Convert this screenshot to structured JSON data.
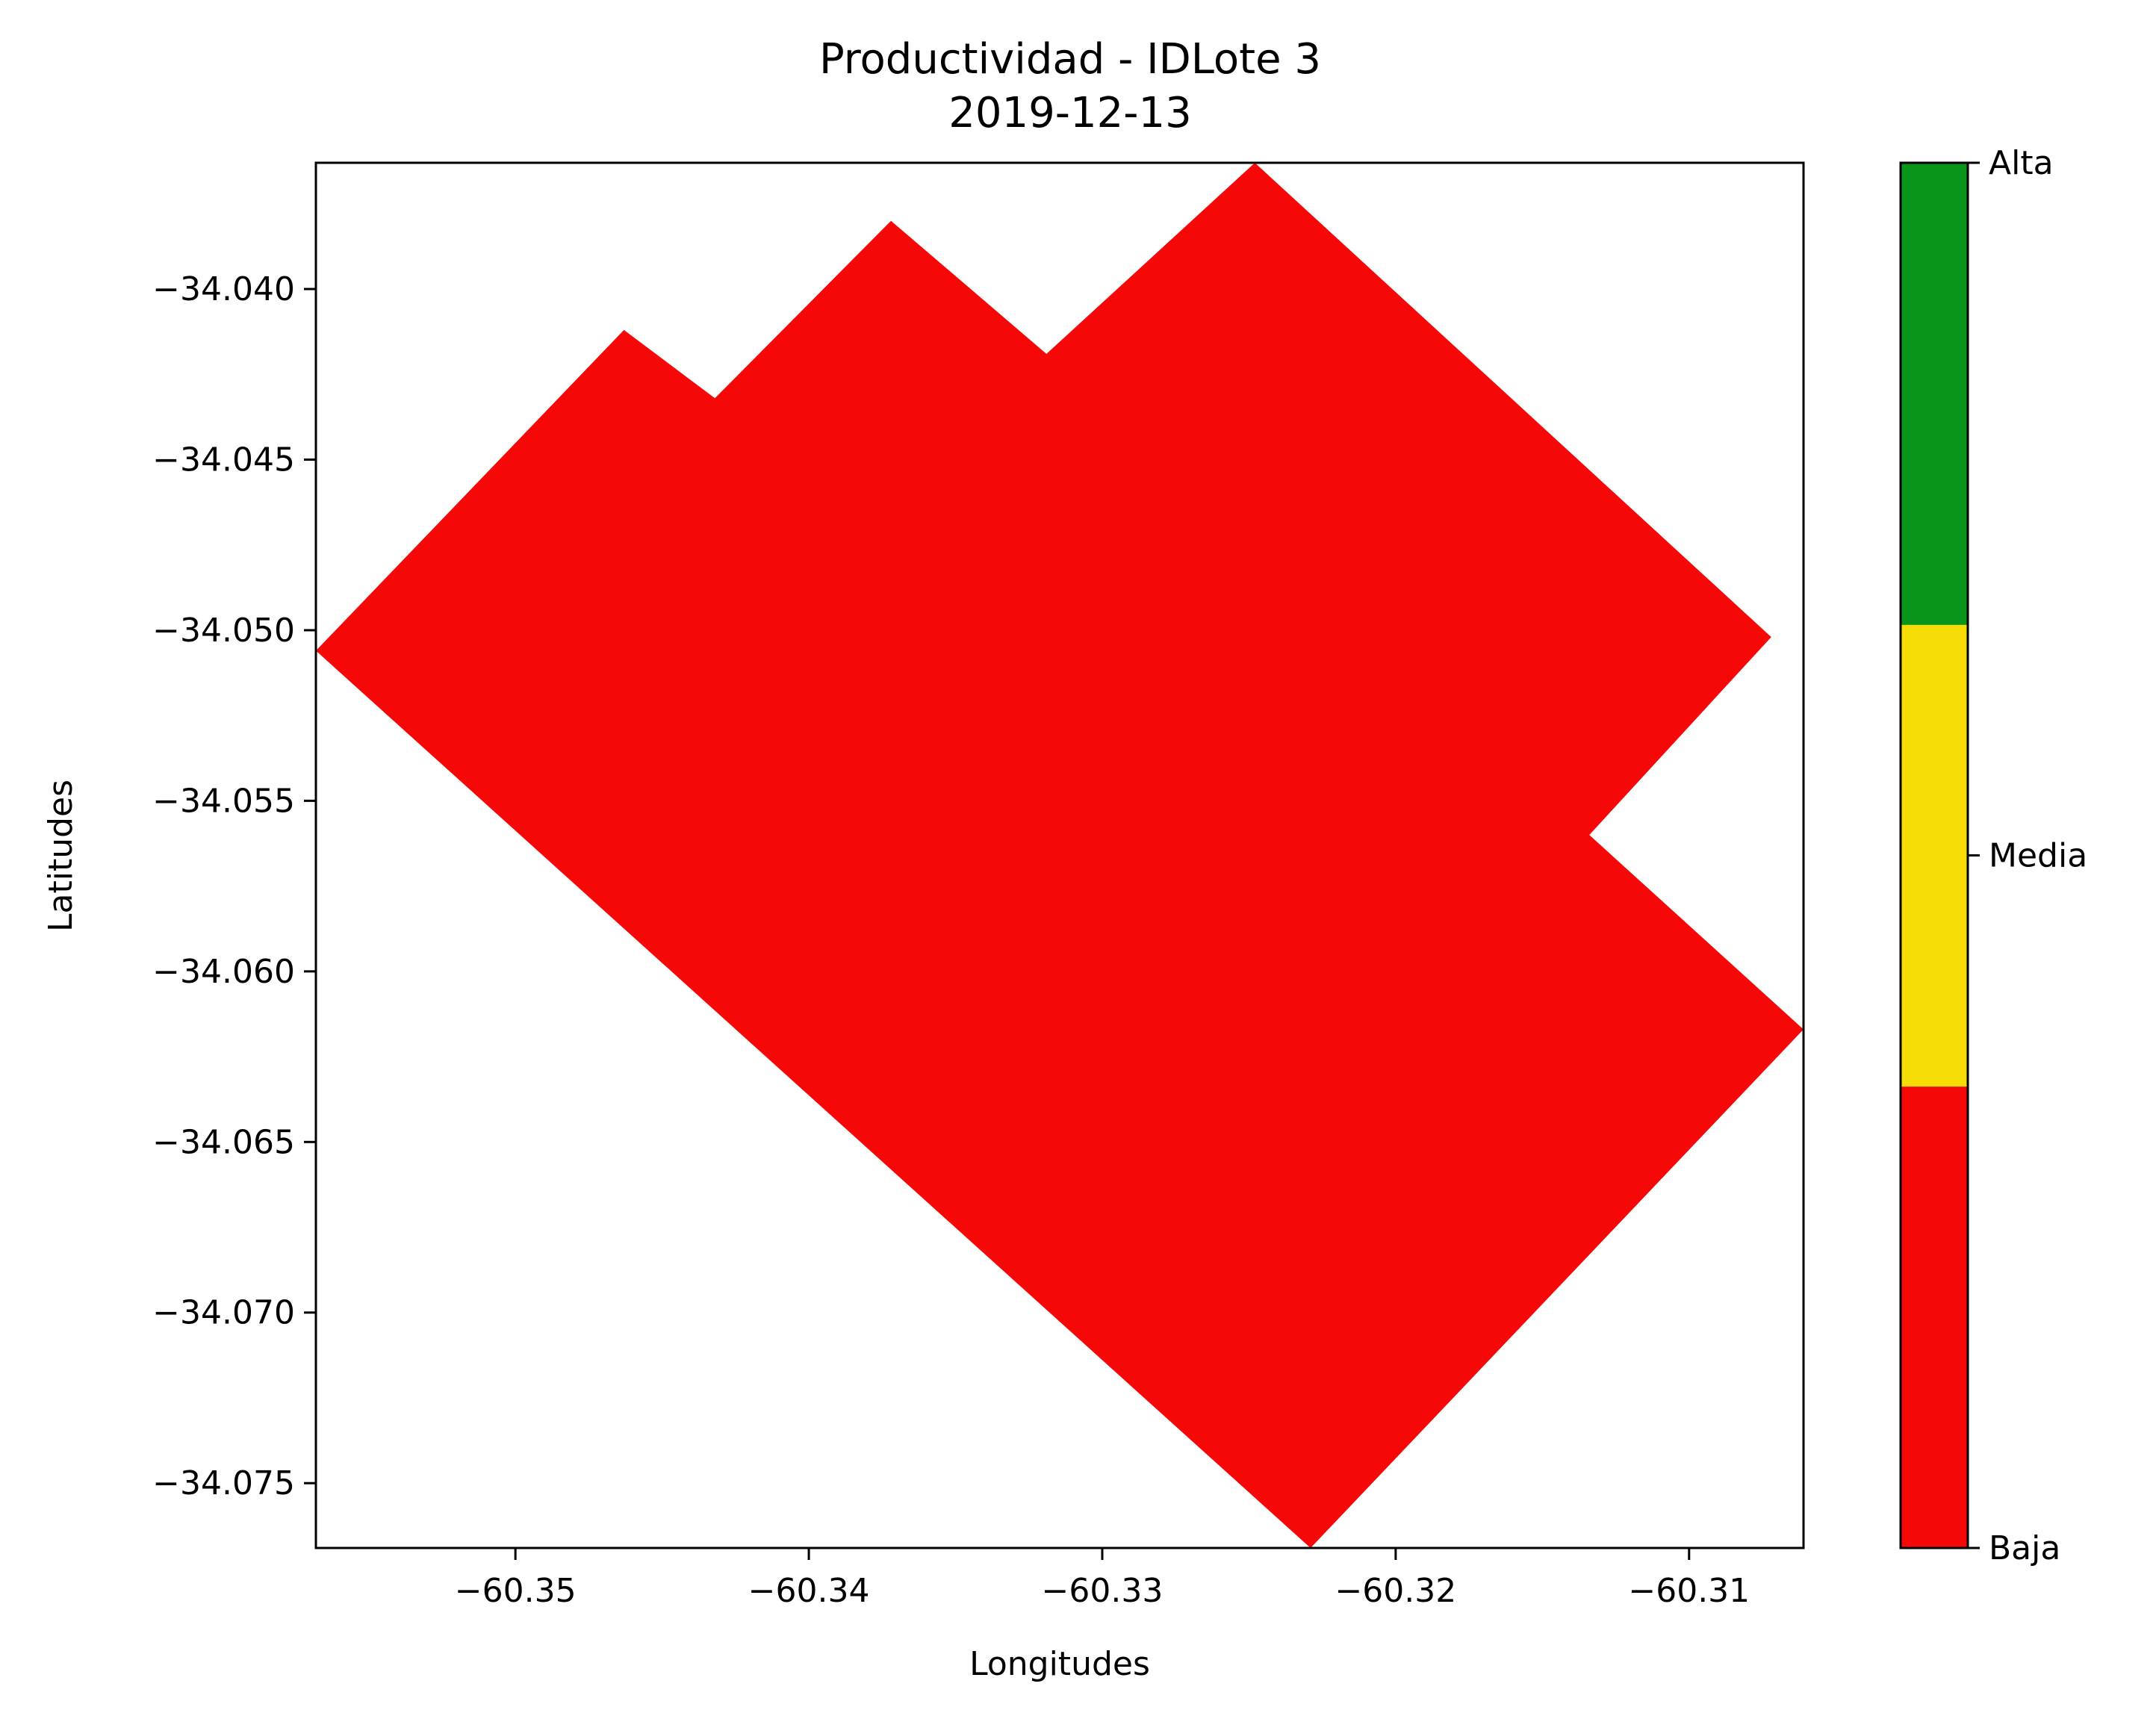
{
  "chart_data": {
    "type": "heatmap",
    "title": "Productividad - IDLote 3",
    "subtitle": "2019-12-13",
    "xlabel": "Longitudes",
    "ylabel": "Latitudes",
    "xlim": [
      -60.3568,
      -60.3061
    ],
    "ylim": [
      -34.0769,
      -34.0363
    ],
    "xticks": [
      -60.35,
      -60.34,
      -60.33,
      -60.32,
      -60.31
    ],
    "xtick_labels": [
      "−60.35",
      "−60.34",
      "−60.33",
      "−60.32",
      "−60.31"
    ],
    "yticks": [
      -34.04,
      -34.045,
      -34.05,
      -34.055,
      -34.06,
      -34.065,
      -34.07,
      -34.075
    ],
    "ytick_labels": [
      "−34.040",
      "−34.045",
      "−34.050",
      "−34.055",
      "−34.060",
      "−34.065",
      "−34.070",
      "−34.075"
    ],
    "grid": false,
    "field": {
      "class": "Baja",
      "color": "#f70808",
      "boundary_lon_lat": [
        [
          -60.3568,
          -34.0506
        ],
        [
          -60.3463,
          -34.0412
        ],
        [
          -60.3432,
          -34.0432
        ],
        [
          -60.3372,
          -34.038
        ],
        [
          -60.3319,
          -34.0419
        ],
        [
          -60.3248,
          -34.0363
        ],
        [
          -60.3072,
          -34.0502
        ],
        [
          -60.3134,
          -34.056
        ],
        [
          -60.3061,
          -34.0617
        ],
        [
          -60.3229,
          -34.0769
        ]
      ]
    },
    "colorbar": {
      "classes": [
        {
          "label": "Baja",
          "color": "#f70808"
        },
        {
          "label": "Media",
          "color": "#f5dd05"
        },
        {
          "label": "Alta",
          "color": "#08961a"
        }
      ],
      "tick_labels": [
        "Baja",
        "Media",
        "Alta"
      ]
    }
  }
}
